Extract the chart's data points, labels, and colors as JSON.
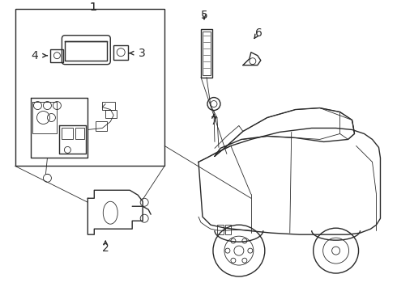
{
  "background_color": "#ffffff",
  "line_color": "#2a2a2a",
  "lw": 1.0,
  "tlw": 0.6,
  "fig_width": 4.9,
  "fig_height": 3.6,
  "dpi": 100
}
